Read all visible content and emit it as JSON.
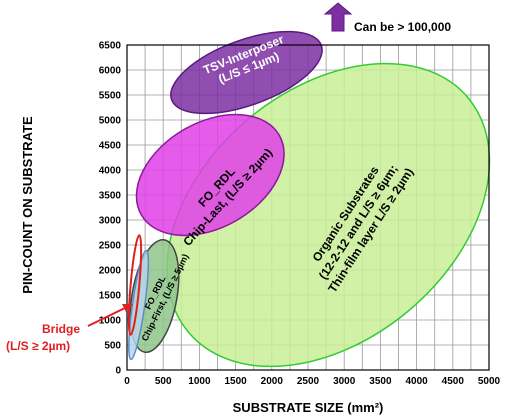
{
  "chart_data": {
    "type": "scatter",
    "title": "",
    "xlabel": "SUBSTRATE SIZE (mm²)",
    "ylabel": "PIN-COUNT ON SUBSTRATE",
    "xlim": [
      0,
      5000
    ],
    "ylim": [
      0,
      6500
    ],
    "xticks": [
      0,
      250,
      500,
      750,
      1000,
      1250,
      1500,
      1750,
      2000,
      2250,
      2500,
      2750,
      3000,
      3250,
      3500,
      3750,
      4000,
      4250,
      4500,
      4750,
      5000
    ],
    "xtick_labels": [
      "0",
      "",
      "500",
      "",
      "1000",
      "",
      "1500",
      "",
      "2000",
      "",
      "2500",
      "",
      "3000",
      "",
      "3500",
      "",
      "4000",
      "",
      "4500",
      "",
      "5000"
    ],
    "xtick_labels_alt": [
      "0",
      "250",
      "500",
      "750",
      "1000",
      "1250",
      "1500",
      "1750",
      "2000",
      "2250",
      "2500",
      "2750",
      "3000",
      "3250",
      "3500",
      "3750",
      "4000",
      "4250",
      "4500",
      "4750",
      "5000"
    ],
    "yticks": [
      0,
      500,
      1000,
      1500,
      2000,
      2500,
      3000,
      3500,
      4000,
      4500,
      5000,
      5500,
      6000,
      6500
    ],
    "grid": true,
    "regions": [
      {
        "name_lines": [
          "Organic Substrates",
          "(12-2-12 and L/S ≥ 6µm;",
          "Thin-film layer L/S ≥ 2µm)"
        ],
        "cx": 2780,
        "cy": 3100,
        "rx": 2520,
        "ry": 2500,
        "rotation": -40,
        "fill": "#c8ee96",
        "stroke": "#33cc33"
      },
      {
        "name_lines": [
          "TSV-Interposer",
          "(L/S ≤ 1µm)"
        ],
        "cx": 1650,
        "cy": 5950,
        "rx": 1100,
        "ry": 650,
        "rotation": -20,
        "fill": "#7d2fa2",
        "stroke": "#5a1a80"
      },
      {
        "name_lines": [
          "FO_RDL",
          "Chip-Last, (L/S ≥ 2µm)"
        ],
        "cx": 1150,
        "cy": 3900,
        "rx": 1100,
        "ry": 1050,
        "rotation": -30,
        "fill": "#e040e8",
        "stroke": "#8a1a9a"
      },
      {
        "name_lines": [
          "FO_RDL",
          "Chip-First, (L/S ≥ 5µm)"
        ],
        "cx": 380,
        "cy": 1480,
        "rx": 310,
        "ry": 1140,
        "rotation": 10,
        "fill": "#8ec68a",
        "stroke": "#444444"
      },
      {
        "name_lines": [],
        "cx": 160,
        "cy": 1300,
        "rx": 85,
        "ry": 1100,
        "rotation": 8,
        "fill": "#b7d3ea",
        "stroke": "#5a8fc0"
      },
      {
        "name_lines": [],
        "cx": 110,
        "cy": 1700,
        "rx": 60,
        "ry": 1000,
        "rotation": 5,
        "fill": "none",
        "stroke": "#e02020"
      }
    ],
    "annotations": [
      {
        "text_lines": [
          "Bridge",
          "(L/S ≥ 2µm)"
        ],
        "color": "#e02020"
      },
      {
        "text": "Can be > 100,000",
        "color": "#000000"
      }
    ]
  }
}
